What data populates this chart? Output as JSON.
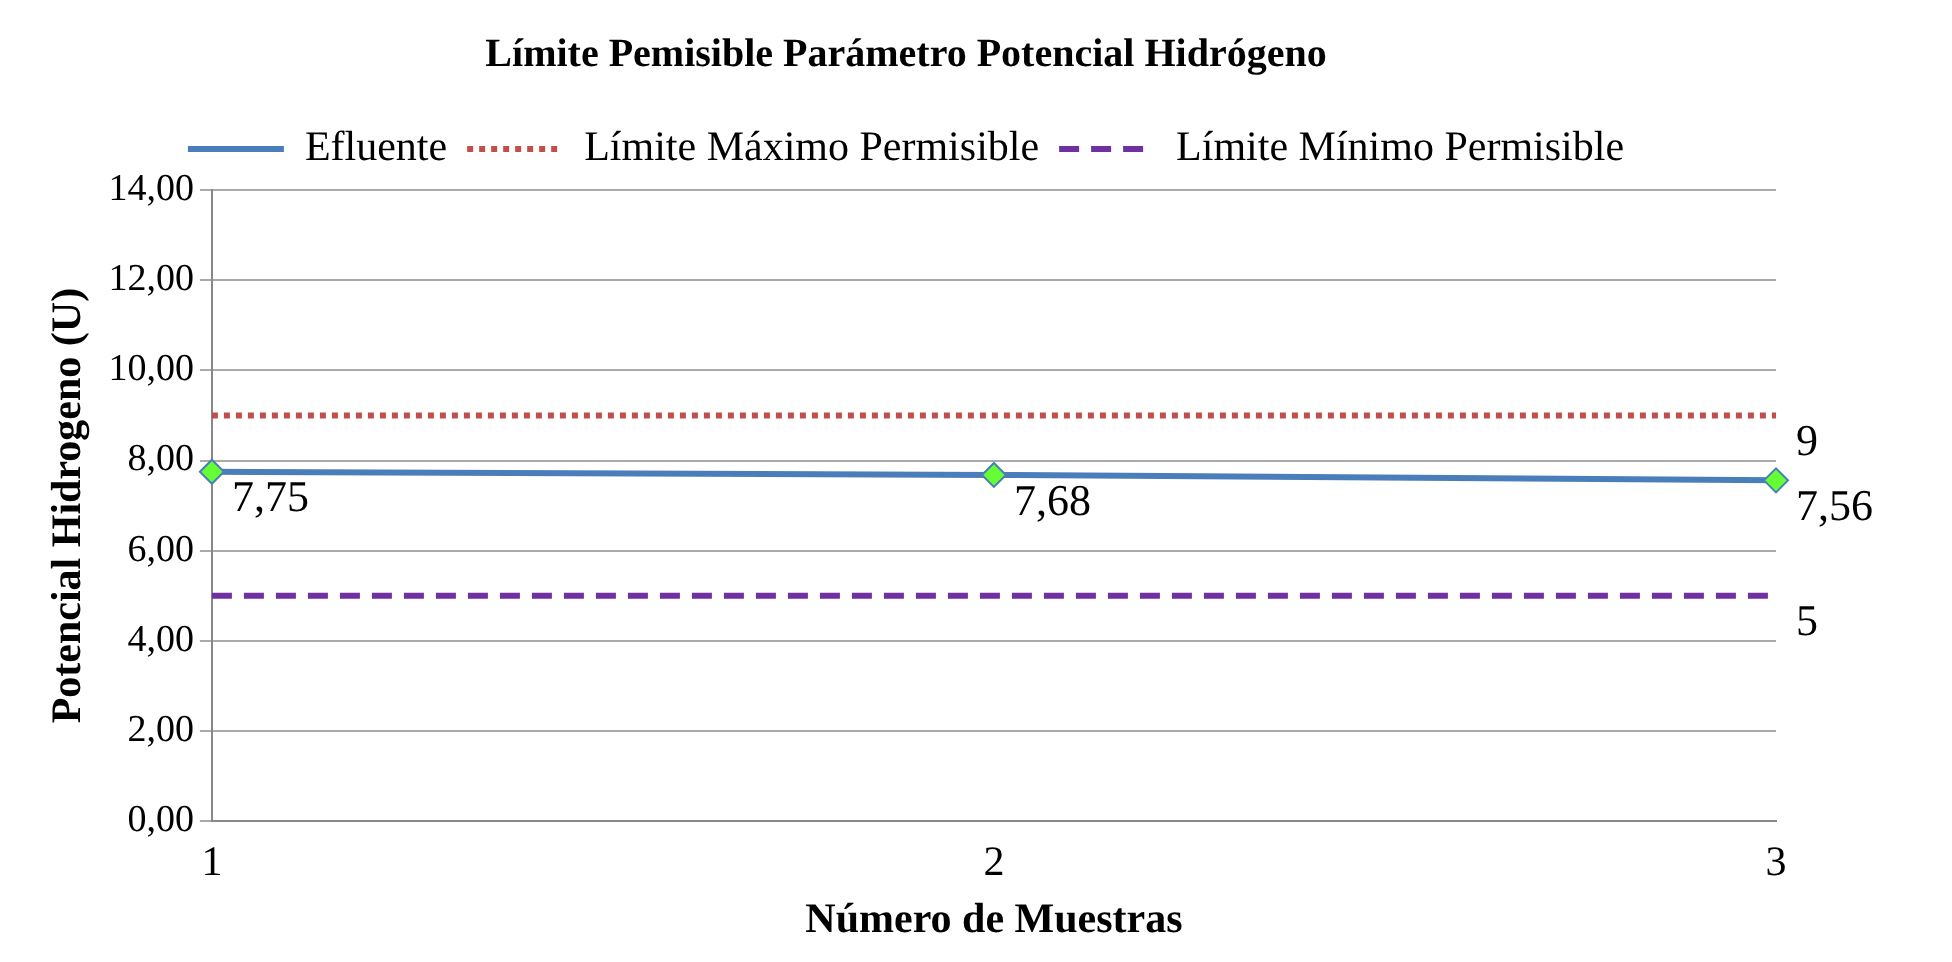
{
  "chart_data": {
    "type": "line",
    "title": "Límite Pemisible Parámetro Potencial Hidrógeno",
    "xlabel": "Número de Muestras",
    "ylabel": "Potencial Hidrogeno (U)",
    "categories": [
      "1",
      "2",
      "3"
    ],
    "series": [
      {
        "name": "Efluente",
        "color": "#4a7ebb",
        "colors": [
          "#66ff33",
          "#66ff33",
          "#66ff33"
        ],
        "values": [
          7.75,
          7.68,
          7.56
        ],
        "marker": "diamond",
        "line_style": "solid",
        "value_labels": [
          "7,75",
          "7,68",
          "7,56"
        ]
      },
      {
        "name": "Límite Máximo Permisible",
        "color": "#c0504d",
        "values": [
          9,
          9,
          9
        ],
        "marker": "none",
        "line_style": "dotted",
        "value_labels": [
          null,
          null,
          "9"
        ]
      },
      {
        "name": "Límite Mínimo Permisible",
        "color": "#7030a0",
        "values": [
          5,
          5,
          5
        ],
        "marker": "none",
        "line_style": "dashed",
        "value_labels": [
          null,
          null,
          "5"
        ]
      }
    ],
    "ylim": [
      0,
      14
    ],
    "yticks": [
      {
        "value": 0,
        "label": "0,00"
      },
      {
        "value": 2,
        "label": "2,00"
      },
      {
        "value": 4,
        "label": "4,00"
      },
      {
        "value": 6,
        "label": "6,00"
      },
      {
        "value": 8,
        "label": "8,00"
      },
      {
        "value": 10,
        "label": "10,00"
      },
      {
        "value": 12,
        "label": "12,00"
      },
      {
        "value": 14,
        "label": "14,00"
      }
    ],
    "grid": "y",
    "legend": "top"
  }
}
